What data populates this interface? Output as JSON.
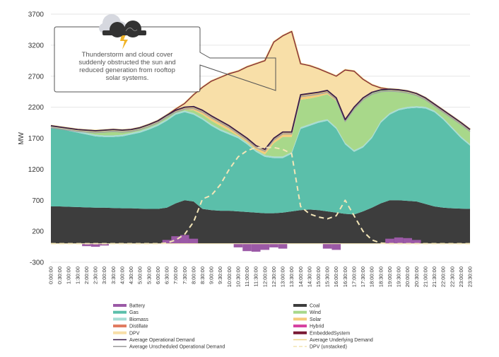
{
  "chart_data": {
    "type": "area",
    "title": "",
    "xlabel": "",
    "ylabel": "MW",
    "ylim": [
      -300,
      3700
    ],
    "yticks": [
      -300,
      200,
      700,
      1200,
      1700,
      2200,
      2700,
      3200,
      3700
    ],
    "grid": "horizontal",
    "legend_placement": "bottom",
    "annotation": {
      "lines": [
        "Thunderstorm and cloud cover",
        "suddenly obstructed the sun and",
        "reduced generation from rooftop",
        "solar systems."
      ],
      "icon": "thunderstorm-cloud-icon"
    },
    "x": [
      "0:00:00",
      "0:30:00",
      "1:00:00",
      "1:30:00",
      "2:00:00",
      "2:30:00",
      "3:00:00",
      "3:30:00",
      "4:00:00",
      "4:30:00",
      "5:00:00",
      "5:30:00",
      "6:00:00",
      "6:30:00",
      "7:00:00",
      "7:30:00",
      "8:00:00",
      "8:30:00",
      "9:00:00",
      "9:30:00",
      "10:00:00",
      "10:30:00",
      "11:00:00",
      "11:30:00",
      "12:00:00",
      "12:30:00",
      "13:00:00",
      "13:30:00",
      "14:00:00",
      "14:30:00",
      "15:00:00",
      "15:30:00",
      "16:00:00",
      "16:30:00",
      "17:00:00",
      "17:30:00",
      "18:00:00",
      "18:30:00",
      "19:00:00",
      "19:30:00",
      "20:00:00",
      "20:30:00",
      "21:00:00",
      "21:30:00",
      "22:00:00",
      "22:30:00",
      "23:00:00",
      "23:30:00"
    ],
    "series": [
      {
        "name": "Battery",
        "color": "#9b59a6",
        "kind": "bar",
        "values": [
          0,
          0,
          0,
          0,
          -40,
          -50,
          -30,
          0,
          0,
          0,
          0,
          0,
          0,
          60,
          120,
          140,
          80,
          0,
          0,
          0,
          0,
          -60,
          -120,
          -130,
          -100,
          -60,
          -80,
          0,
          0,
          0,
          0,
          -80,
          -100,
          0,
          0,
          0,
          0,
          0,
          80,
          100,
          90,
          60,
          0,
          0,
          0,
          0,
          0,
          0
        ]
      },
      {
        "name": "Coal",
        "color": "#3d3d3d",
        "kind": "stack",
        "values": [
          600,
          600,
          595,
          590,
          585,
          580,
          580,
          575,
          570,
          570,
          565,
          560,
          560,
          580,
          650,
          700,
          680,
          560,
          540,
          530,
          530,
          520,
          510,
          500,
          490,
          490,
          500,
          520,
          540,
          550,
          540,
          520,
          500,
          480,
          470,
          520,
          580,
          650,
          700,
          700,
          690,
          680,
          640,
          600,
          580,
          570,
          565,
          560
        ]
      },
      {
        "name": "Gas",
        "color": "#5bbfaa",
        "kind": "stack",
        "values": [
          1270,
          1250,
          1225,
          1200,
          1175,
          1150,
          1140,
          1145,
          1160,
          1190,
          1225,
          1280,
          1340,
          1400,
          1430,
          1420,
          1400,
          1440,
          1360,
          1290,
          1230,
          1180,
          1090,
          980,
          910,
          890,
          880,
          930,
          1310,
          1350,
          1410,
          1460,
          1350,
          1120,
          1010,
          1030,
          1120,
          1300,
          1380,
          1450,
          1490,
          1510,
          1540,
          1520,
          1420,
          1280,
          1135,
          1020
        ]
      },
      {
        "name": "Biomass",
        "color": "#a6dcd4",
        "kind": "stack",
        "values": [
          25,
          25,
          25,
          25,
          25,
          25,
          25,
          25,
          25,
          25,
          25,
          25,
          25,
          25,
          25,
          25,
          25,
          25,
          25,
          25,
          25,
          25,
          25,
          25,
          25,
          25,
          25,
          25,
          25,
          25,
          25,
          25,
          25,
          25,
          25,
          25,
          25,
          25,
          25,
          25,
          25,
          25,
          25,
          25,
          25,
          25,
          25,
          25
        ]
      },
      {
        "name": "Distillate",
        "color": "#e07a5f",
        "kind": "stack",
        "values": [
          0,
          0,
          0,
          0,
          0,
          0,
          0,
          0,
          0,
          0,
          0,
          0,
          0,
          0,
          0,
          0,
          0,
          0,
          0,
          0,
          0,
          0,
          0,
          0,
          0,
          0,
          0,
          0,
          0,
          0,
          0,
          0,
          0,
          0,
          0,
          0,
          0,
          0,
          0,
          0,
          0,
          0,
          0,
          0,
          0,
          0,
          0,
          0
        ]
      },
      {
        "name": "Wind",
        "color": "#a8d88a",
        "kind": "stack",
        "values": [
          10,
          10,
          15,
          25,
          45,
          65,
          85,
          95,
          75,
          55,
          55,
          55,
          55,
          65,
          25,
          15,
          45,
          55,
          55,
          55,
          35,
          10,
          10,
          10,
          15,
          215,
          315,
          245,
          445,
          415,
          395,
          405,
          425,
          335,
          665,
          755,
          705,
          505,
          385,
          305,
          255,
          205,
          145,
          105,
          125,
          175,
          225,
          235
        ]
      },
      {
        "name": "Solar",
        "color": "#f5cb7a",
        "kind": "stack",
        "values": [
          0,
          0,
          0,
          0,
          0,
          0,
          0,
          0,
          0,
          0,
          0,
          0,
          0,
          0,
          20,
          40,
          60,
          70,
          80,
          80,
          80,
          80,
          80,
          80,
          80,
          80,
          80,
          80,
          80,
          80,
          70,
          60,
          50,
          40,
          30,
          20,
          10,
          0,
          0,
          0,
          0,
          0,
          0,
          0,
          0,
          0,
          0,
          0
        ]
      },
      {
        "name": "Hybrid",
        "color": "#d63fa0",
        "kind": "stack",
        "values": [
          0,
          0,
          0,
          0,
          0,
          0,
          0,
          0,
          0,
          0,
          0,
          0,
          0,
          0,
          0,
          0,
          0,
          0,
          0,
          0,
          0,
          0,
          0,
          0,
          0,
          0,
          0,
          0,
          0,
          0,
          0,
          0,
          0,
          0,
          0,
          0,
          0,
          0,
          0,
          0,
          0,
          0,
          0,
          0,
          0,
          0,
          0,
          0
        ]
      },
      {
        "name": "DPV",
        "color": "#f8dfa8",
        "kind": "fill-between-demands"
      },
      {
        "name": "EmbeddedSystem",
        "color": "#7a1a35",
        "kind": "line-on-underlying"
      },
      {
        "name": "Average Operational Demand",
        "color": "#3b1f4a",
        "kind": "line",
        "values": [
          1900,
          1880,
          1860,
          1840,
          1830,
          1820,
          1830,
          1840,
          1830,
          1840,
          1870,
          1920,
          1980,
          2070,
          2150,
          2200,
          2210,
          2150,
          2060,
          1980,
          1900,
          1800,
          1700,
          1580,
          1520,
          1700,
          1800,
          1800,
          2400,
          2420,
          2440,
          2470,
          2350,
          2000,
          2200,
          2350,
          2440,
          2480,
          2490,
          2480,
          2460,
          2420,
          2350,
          2250,
          2150,
          2050,
          1950,
          1840
        ]
      },
      {
        "name": "Average Underlying Demand",
        "color": "#f0d58a",
        "kind": "line",
        "values": [
          1900,
          1880,
          1860,
          1840,
          1830,
          1820,
          1830,
          1840,
          1830,
          1840,
          1870,
          1920,
          1980,
          2070,
          2170,
          2260,
          2400,
          2520,
          2620,
          2680,
          2740,
          2780,
          2850,
          2900,
          2950,
          3250,
          3350,
          3420,
          2900,
          2870,
          2820,
          2760,
          2700,
          2800,
          2780,
          2650,
          2560,
          2510,
          2490,
          2480,
          2460,
          2420,
          2350,
          2250,
          2150,
          2050,
          1950,
          1840
        ]
      },
      {
        "name": "Average Unscheduled Operational Demand",
        "color": "#a0a0a0",
        "kind": "line",
        "values": [
          1870,
          1850,
          1830,
          1810,
          1800,
          1790,
          1800,
          1810,
          1800,
          1810,
          1840,
          1890,
          1950,
          2040,
          2120,
          2170,
          2180,
          2120,
          2030,
          1950,
          1870,
          1770,
          1670,
          1550,
          1490,
          1670,
          1770,
          1770,
          2370,
          2390,
          2410,
          2440,
          2320,
          1970,
          2170,
          2320,
          2410,
          2450,
          2460,
          2450,
          2430,
          2390,
          2320,
          2220,
          2120,
          2020,
          1920,
          1810
        ]
      },
      {
        "name": "DPV (unstacked)",
        "color": "#f3e6b8",
        "kind": "dashed",
        "values": [
          0,
          0,
          0,
          0,
          0,
          0,
          0,
          0,
          0,
          0,
          0,
          0,
          0,
          10,
          60,
          150,
          350,
          720,
          780,
          950,
          1200,
          1400,
          1500,
          1550,
          1550,
          1550,
          1520,
          1450,
          600,
          480,
          430,
          400,
          450,
          700,
          450,
          200,
          60,
          10,
          0,
          0,
          0,
          0,
          0,
          0,
          0,
          0,
          0,
          0
        ]
      }
    ],
    "legend": {
      "left": [
        {
          "label": "Battery",
          "color": "#9b59a6",
          "style": "bar"
        },
        {
          "label": "Gas",
          "color": "#5bbfaa",
          "style": "bar"
        },
        {
          "label": "Biomass",
          "color": "#a6dcd4",
          "style": "bar"
        },
        {
          "label": "Distillate",
          "color": "#e07a5f",
          "style": "bar"
        },
        {
          "label": "DPV",
          "color": "#f8dfa8",
          "style": "bar"
        },
        {
          "label": "Average Operational Demand",
          "color": "#3b1f4a",
          "style": "line"
        },
        {
          "label": "Average Unscheduled Operational Demand",
          "color": "#a0a0a0",
          "style": "line"
        }
      ],
      "right": [
        {
          "label": "Coal",
          "color": "#3d3d3d",
          "style": "bar"
        },
        {
          "label": "Wind",
          "color": "#a8d88a",
          "style": "bar"
        },
        {
          "label": "Solar",
          "color": "#f5cb7a",
          "style": "bar"
        },
        {
          "label": "Hybrid",
          "color": "#d63fa0",
          "style": "bar"
        },
        {
          "label": "EmbeddedSystem",
          "color": "#7a1a35",
          "style": "bar"
        },
        {
          "label": "Average Underlying Demand",
          "color": "#f0d58a",
          "style": "line"
        },
        {
          "label": "DPV (unstacked)",
          "color": "#f3e6b8",
          "style": "dashed"
        }
      ]
    }
  }
}
